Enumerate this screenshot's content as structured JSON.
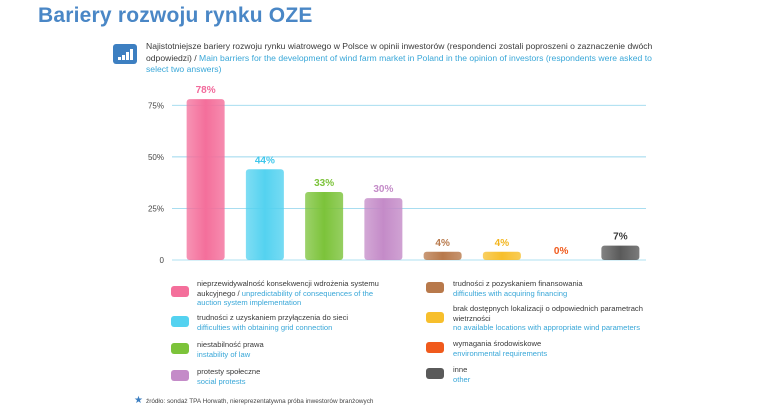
{
  "header": {
    "title": "Bariery rozwoju rynku OZE",
    "subtitle_pl": "Najistotniejsze bariery rozwoju rynku wiatrowego w Polsce w opinii inwestorów (respondenci zostali poproszeni o zaznaczenie dwóch odpowiedzi) /",
    "subtitle_en": "Main barriers for the development of wind farm market in Poland in the opinion of investors (respondents were asked to select two answers)"
  },
  "chart_data": {
    "type": "bar",
    "categories": [
      "nieprzewidywalność konsekwencji wdrożenia systemu aukcyjnego",
      "trudności z uzyskaniem przyłączenia do sieci",
      "niestabilność prawa",
      "protesty społeczne",
      "trudności z pozyskaniem finansowania",
      "brak dostępnych lokalizacji o odpowiednich parametrach wietrzności",
      "wymagania środowiskowe",
      "inne"
    ],
    "values": [
      78,
      44,
      33,
      30,
      4,
      4,
      0,
      7
    ],
    "value_labels": [
      "78%",
      "44%",
      "33%",
      "30%",
      "4%",
      "4%",
      "0%",
      "7%"
    ],
    "colors": [
      "#f46f9b",
      "#54d2f0",
      "#7cc33a",
      "#c48bc8",
      "#b8794b",
      "#f7bf2c",
      "#f05a1c",
      "#5a5a5a"
    ],
    "label_colors": [
      "#f2699b",
      "#3fc7ec",
      "#7cc33a",
      "#c48bc8",
      "#b8794b",
      "#f3b51c",
      "#f05a1c",
      "#3a3a3a"
    ],
    "ylim": [
      0,
      80
    ],
    "yticks": [
      0,
      25,
      50,
      75
    ],
    "ytick_labels": [
      "0",
      "25%",
      "50%",
      "75%"
    ],
    "grid": true,
    "legend_placement": "bottom"
  },
  "legend": [
    {
      "pl": "nieprzewidywalność konsekwencji wdrożenia systemu aukcyjnego /",
      "en": "unpredictability of consequences of the auction system implementation"
    },
    {
      "pl": "trudności z uzyskaniem przyłączenia do sieci",
      "en": "difficulties with obtaining grid connection"
    },
    {
      "pl": "niestabilność prawa",
      "en": "instability of law"
    },
    {
      "pl": "protesty społeczne",
      "en": "social protests"
    },
    {
      "pl": "trudności z pozyskaniem finansowania",
      "en": "difficulties with acquiring financing"
    },
    {
      "pl": "brak dostępnych lokalizacji o odpowiednich parametrach wietrzności",
      "en": "no available locations with appropriate wind parameters"
    },
    {
      "pl": "wymagania środowiskowe",
      "en": "environmental requirements"
    },
    {
      "pl": "inne",
      "en": "other"
    }
  ],
  "source": "źródło: sondaż TPA Horwath, niereprezentatywna próba inwestorów branżowych"
}
